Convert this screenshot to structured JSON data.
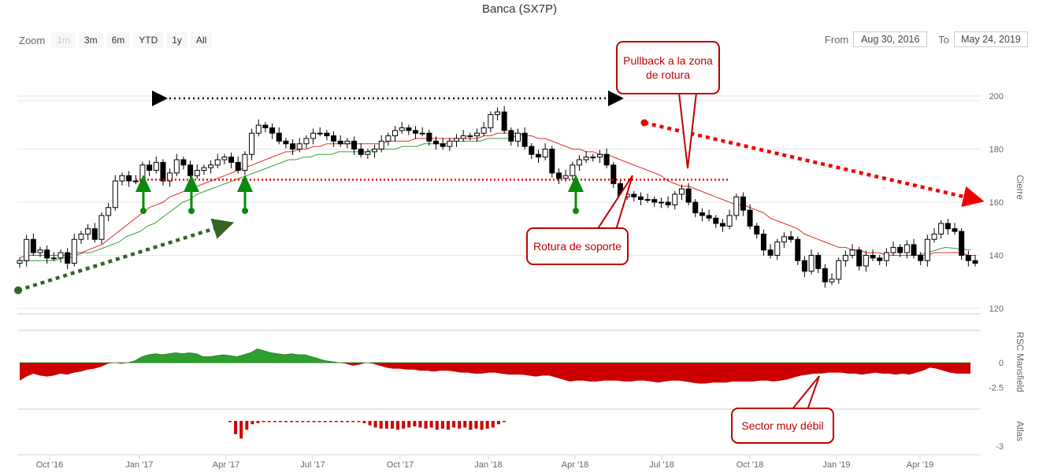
{
  "title": "Banca (SX7P)",
  "zoom": {
    "label": "Zoom",
    "buttons": [
      {
        "label": "1m",
        "disabled": true
      },
      {
        "label": "3m",
        "disabled": false
      },
      {
        "label": "6m",
        "disabled": false
      },
      {
        "label": "YTD",
        "disabled": false
      },
      {
        "label": "1y",
        "disabled": false
      },
      {
        "label": "All",
        "disabled": false
      }
    ]
  },
  "range": {
    "from_label": "From",
    "from_value": "Aug 30, 2016",
    "to_label": "To",
    "to_value": "May 24, 2019"
  },
  "colors": {
    "up": "#ffffff",
    "down": "#000000",
    "ma": "#e03030",
    "ma_long": "#3c9a3c",
    "rsc_pos": "#2ea02e",
    "rsc_neg": "#cc0000",
    "annotation": "#cc0000",
    "support_arrow": "#0a8a0a",
    "trend": "#336622"
  },
  "annotations": {
    "pullback": "Pullback a la zona de rotura",
    "rotura": "Rotura de soporte",
    "sector": "Sector muy débil"
  },
  "chart_data": [
    {
      "type": "candlestick",
      "name": "price",
      "ylabel": "Cierre",
      "yticks": [
        120,
        140,
        160,
        180,
        200
      ],
      "ylim": [
        118,
        215
      ],
      "xlim": [
        "2016-08-30",
        "2019-05-24"
      ],
      "xticks": [
        "Oct '16",
        "Jan '17",
        "Apr '17",
        "Jul '17",
        "Oct '17",
        "Jan '18",
        "Apr '18",
        "Jul '18",
        "Oct '18",
        "Jan '19",
        "Apr '19"
      ],
      "weekly_close": [
        138,
        146,
        141,
        142,
        139,
        139,
        141,
        137,
        146,
        148,
        150,
        146,
        155,
        158,
        168,
        170,
        168,
        168,
        174,
        172,
        175,
        168,
        171,
        176,
        174,
        170,
        172,
        173,
        174,
        176,
        177,
        175,
        172,
        178,
        186,
        189,
        188,
        186,
        183,
        182,
        180,
        182,
        184,
        186,
        186,
        185,
        183,
        182,
        183,
        180,
        178,
        179,
        180,
        183,
        185,
        187,
        188,
        187,
        186,
        186,
        183,
        182,
        181,
        183,
        184,
        185,
        185,
        186,
        188,
        193,
        194,
        187,
        183,
        186,
        181,
        178,
        177,
        180,
        171,
        169,
        170,
        174,
        176,
        177,
        177,
        178,
        174,
        167,
        162,
        163,
        162,
        161,
        161,
        160,
        160,
        159,
        163,
        165,
        160,
        156,
        155,
        154,
        152,
        151,
        155,
        162,
        157,
        151,
        148,
        142,
        140,
        145,
        147,
        146,
        138,
        134,
        140,
        135,
        130,
        131,
        138,
        140,
        142,
        136,
        140,
        139,
        138,
        141,
        143,
        141,
        144,
        140,
        138,
        146,
        148,
        152,
        150,
        149,
        140,
        138,
        137
      ],
      "ma_short": [
        139,
        140,
        140,
        140,
        140,
        140,
        140,
        140,
        141,
        141,
        142,
        143,
        144,
        146,
        148,
        150,
        152,
        154,
        156,
        158,
        159,
        160,
        162,
        163,
        164,
        165,
        166,
        167,
        168,
        169,
        170,
        171,
        172,
        173,
        174,
        175,
        176,
        177,
        178,
        179,
        179,
        180,
        180,
        181,
        181,
        182,
        182,
        182,
        182,
        182,
        182,
        182,
        182,
        182,
        183,
        183,
        183,
        183,
        184,
        184,
        184,
        184,
        184,
        184,
        184,
        184,
        184,
        184,
        185,
        185,
        186,
        186,
        186,
        186,
        185,
        185,
        184,
        184,
        183,
        182,
        181,
        180,
        180,
        179,
        179,
        178,
        178,
        177,
        176,
        175,
        174,
        173,
        172,
        171,
        170,
        168,
        167,
        166,
        166,
        165,
        164,
        163,
        162,
        161,
        160,
        159,
        159,
        158,
        157,
        156,
        154,
        153,
        152,
        151,
        150,
        148,
        147,
        146,
        145,
        144,
        143,
        143,
        142,
        142,
        141,
        141,
        141,
        140,
        140,
        140,
        140,
        140,
        140,
        140,
        141,
        141,
        141,
        141,
        141,
        140,
        140
      ],
      "ma_long": [
        138,
        138,
        138,
        138,
        138,
        138,
        139,
        139,
        140,
        141,
        141,
        142,
        143,
        144,
        145,
        147,
        148,
        149,
        151,
        152,
        154,
        156,
        158,
        160,
        161,
        163,
        164,
        165,
        166,
        167,
        168,
        169,
        170,
        171,
        172,
        173,
        174,
        175,
        176,
        176,
        177,
        177,
        178,
        178,
        178,
        179,
        179,
        179,
        179,
        179,
        180,
        180,
        180,
        180,
        181,
        181,
        181,
        182,
        182,
        182,
        182,
        183,
        183,
        183,
        183,
        183,
        184,
        184,
        184,
        184,
        185
      ],
      "levels": [
        {
          "name": "support",
          "value": 168.5
        }
      ],
      "support_bounces": [
        "Dec '16",
        "Mar '17",
        "Apr '17",
        "Apr '18"
      ]
    },
    {
      "type": "area",
      "name": "RSC Mansfield",
      "ylabel": "RSC Mansfield",
      "yticks": [
        0,
        -2.5
      ],
      "values": [
        -1.8,
        -1.4,
        -1.1,
        -1.3,
        -1.4,
        -1.3,
        -1.1,
        -1.2,
        -1,
        -0.9,
        -0.7,
        -0.6,
        -0.4,
        -0.1,
        0,
        -0.1,
        0,
        0.2,
        0.6,
        0.8,
        0.9,
        0.8,
        0.9,
        1,
        0.9,
        1,
        0.9,
        0.6,
        0.6,
        0.7,
        0.8,
        0.7,
        0.6,
        0.8,
        1,
        1.4,
        1.2,
        1,
        0.9,
        0.8,
        0.9,
        0.8,
        0.8,
        0.6,
        0.4,
        0.2,
        0.1,
        0,
        -0.1,
        -0.3,
        -0.2,
        0,
        -0.1,
        -0.3,
        -0.5,
        -0.6,
        -0.6,
        -0.7,
        -0.7,
        -0.8,
        -0.8,
        -0.9,
        -0.8,
        -0.8,
        -0.9,
        -1,
        -1,
        -1.1,
        -1.1,
        -1,
        -1,
        -1.1,
        -1.2,
        -1.2,
        -1.2,
        -1.3,
        -1.4,
        -1.3,
        -1.3,
        -1.5,
        -1.7,
        -1.9,
        -1.8,
        -1.8,
        -1.9,
        -1.9,
        -1.8,
        -1.8,
        -1.8,
        -1.9,
        -1.9,
        -1.8,
        -1.8,
        -1.9,
        -2,
        -1.9,
        -1.8,
        -1.8,
        -1.9,
        -2,
        -2.1,
        -2.1,
        -2,
        -2,
        -2,
        -1.9,
        -1.9,
        -1.9,
        -1.9,
        -1.8,
        -1.8,
        -1.9,
        -1.8,
        -1.7,
        -1.5,
        -1.3,
        -1.2,
        -1.1,
        -1.1,
        -1,
        -1,
        -1,
        -1.1,
        -1.1,
        -1.2,
        -1.1,
        -1,
        -1.1,
        -1.1,
        -1.2,
        -1.1,
        -1.2,
        -1,
        -0.8,
        -0.5,
        -0.6,
        -0.8,
        -1,
        -1.1,
        -1.1,
        -1.1
      ]
    },
    {
      "type": "bar",
      "name": "Atlas",
      "ylabel": "Atlas",
      "yticks": [
        -3
      ],
      "values": [
        -0.1,
        -1.2,
        -1.6,
        -0.8,
        -0.3,
        -0.2,
        -0.1,
        -0.1,
        -0.1,
        -0.1,
        -0.1,
        -0.1,
        -0.1,
        -0.1,
        -0.1,
        -0.1,
        -0.1,
        -0.1,
        -0.1,
        -0.1,
        -0.1,
        -0.1,
        -0.1,
        -0.1,
        -0.2,
        -0.4,
        -0.6,
        -0.7,
        -0.7,
        -0.7,
        -0.8,
        -0.7,
        -0.6,
        -0.5,
        -0.6,
        -0.7,
        -0.6,
        -0.8,
        -0.7,
        -0.8,
        -0.6,
        -0.7,
        -0.6,
        -0.8,
        -0.7,
        -0.8,
        -0.7,
        -0.6,
        -0.3,
        -0.1
      ]
    }
  ]
}
